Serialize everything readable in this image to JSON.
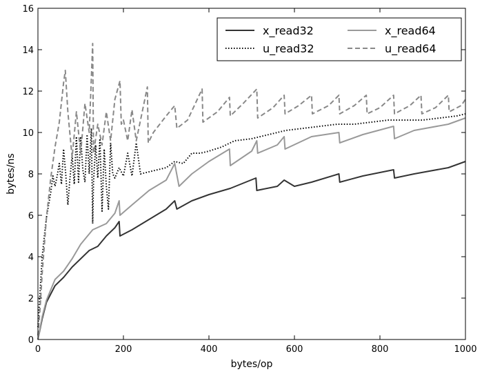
{
  "chart_data": {
    "type": "line",
    "title": "",
    "xlabel": "bytes/op",
    "ylabel": "bytes/ns",
    "xlim": [
      0,
      1000
    ],
    "ylim": [
      0,
      16
    ],
    "xticks": [
      0,
      200,
      400,
      600,
      800,
      1000
    ],
    "yticks": [
      0,
      2,
      4,
      6,
      8,
      10,
      12,
      14,
      16
    ],
    "xtick_labels": [
      "0",
      "200",
      "400",
      "600",
      "800",
      "1000"
    ],
    "ytick_labels": [
      "0",
      "2",
      "4",
      "6",
      "8",
      "10",
      "12",
      "14",
      "16"
    ],
    "grid": false,
    "legend_position": "top-right",
    "series": [
      {
        "name": "x_read32",
        "color": "#333333",
        "dash": "solid",
        "x": [
          0,
          10,
          20,
          40,
          60,
          80,
          100,
          120,
          140,
          160,
          180,
          190,
          192,
          220,
          260,
          300,
          320,
          325,
          360,
          400,
          450,
          510,
          512,
          560,
          576,
          600,
          640,
          704,
          706,
          760,
          832,
          834,
          880,
          960,
          1000
        ],
        "y": [
          0.0,
          1.0,
          1.8,
          2.6,
          3.0,
          3.5,
          3.9,
          4.3,
          4.5,
          5.0,
          5.4,
          5.7,
          5.0,
          5.3,
          5.8,
          6.3,
          6.7,
          6.3,
          6.7,
          7.0,
          7.3,
          7.8,
          7.2,
          7.4,
          7.7,
          7.4,
          7.6,
          8.0,
          7.6,
          7.9,
          8.2,
          7.8,
          8.0,
          8.3,
          8.6
        ]
      },
      {
        "name": "x_read64",
        "color": "#999999",
        "dash": "solid",
        "x": [
          0,
          10,
          20,
          40,
          60,
          80,
          100,
          128,
          160,
          180,
          190,
          192,
          220,
          260,
          300,
          320,
          330,
          360,
          400,
          448,
          450,
          500,
          512,
          514,
          560,
          576,
          578,
          640,
          704,
          706,
          760,
          832,
          834,
          880,
          960,
          1000
        ],
        "y": [
          0.0,
          1.1,
          1.9,
          2.9,
          3.3,
          3.9,
          4.6,
          5.3,
          5.6,
          6.1,
          6.7,
          6.0,
          6.5,
          7.2,
          7.7,
          8.5,
          7.4,
          8.0,
          8.6,
          9.2,
          8.4,
          9.1,
          9.6,
          9.0,
          9.4,
          9.8,
          9.2,
          9.8,
          10.0,
          9.5,
          9.9,
          10.3,
          9.7,
          10.1,
          10.4,
          10.7
        ]
      },
      {
        "name": "u_read32",
        "color": "#000000",
        "dash": "dotted",
        "x": [
          0,
          5,
          10,
          15,
          20,
          25,
          30,
          35,
          40,
          45,
          50,
          55,
          60,
          65,
          70,
          75,
          80,
          85,
          90,
          95,
          100,
          105,
          110,
          115,
          120,
          125,
          128,
          130,
          135,
          140,
          145,
          150,
          155,
          160,
          165,
          170,
          175,
          180,
          190,
          200,
          210,
          220,
          230,
          240,
          260,
          280,
          300,
          320,
          340,
          360,
          380,
          400,
          430,
          460,
          500,
          540,
          580,
          620,
          660,
          700,
          740,
          780,
          820,
          860,
          900,
          940,
          980,
          1000
        ],
        "y": [
          0.6,
          2.3,
          4.0,
          5.0,
          5.9,
          6.5,
          7.1,
          7.9,
          7.4,
          7.9,
          8.5,
          7.5,
          9.2,
          8.0,
          6.5,
          7.8,
          8.9,
          7.5,
          9.8,
          7.6,
          9.8,
          8.2,
          7.6,
          9.9,
          8.0,
          10.2,
          5.6,
          7.6,
          9.4,
          7.8,
          9.7,
          6.2,
          9.2,
          7.4,
          6.3,
          9.5,
          8.0,
          7.8,
          8.3,
          7.9,
          9.0,
          7.9,
          9.5,
          8.0,
          8.1,
          8.2,
          8.3,
          8.6,
          8.5,
          9.0,
          9.0,
          9.1,
          9.3,
          9.6,
          9.7,
          9.9,
          10.1,
          10.2,
          10.3,
          10.4,
          10.4,
          10.5,
          10.6,
          10.6,
          10.6,
          10.7,
          10.8,
          10.9
        ]
      },
      {
        "name": "u_read64",
        "color": "#888888",
        "dash": "dashed",
        "x": [
          0,
          5,
          10,
          20,
          30,
          40,
          50,
          60,
          64,
          70,
          80,
          90,
          100,
          110,
          120,
          128,
          130,
          140,
          150,
          160,
          170,
          180,
          192,
          195,
          200,
          210,
          220,
          230,
          240,
          256,
          258,
          270,
          300,
          320,
          325,
          350,
          384,
          386,
          420,
          448,
          450,
          480,
          512,
          514,
          550,
          576,
          578,
          610,
          640,
          642,
          680,
          704,
          706,
          740,
          768,
          770,
          800,
          832,
          834,
          870,
          896,
          898,
          930,
          960,
          962,
          990,
          1000
        ],
        "y": [
          0.2,
          1.5,
          3.2,
          5.9,
          7.8,
          9.3,
          10.5,
          12.4,
          13.0,
          11.0,
          8.8,
          11.0,
          9.0,
          11.4,
          10.0,
          14.3,
          9.0,
          10.4,
          9.4,
          11.0,
          9.6,
          11.6,
          12.5,
          10.4,
          10.6,
          9.6,
          11.1,
          9.6,
          10.6,
          12.2,
          9.5,
          10.0,
          10.8,
          11.3,
          10.2,
          10.6,
          12.1,
          10.5,
          11.0,
          11.7,
          10.8,
          11.4,
          12.1,
          10.7,
          11.2,
          11.8,
          10.9,
          11.3,
          11.8,
          10.9,
          11.3,
          11.8,
          10.9,
          11.3,
          11.8,
          10.9,
          11.2,
          11.8,
          10.9,
          11.3,
          11.8,
          10.9,
          11.2,
          11.8,
          11.0,
          11.3,
          11.6
        ]
      }
    ]
  }
}
